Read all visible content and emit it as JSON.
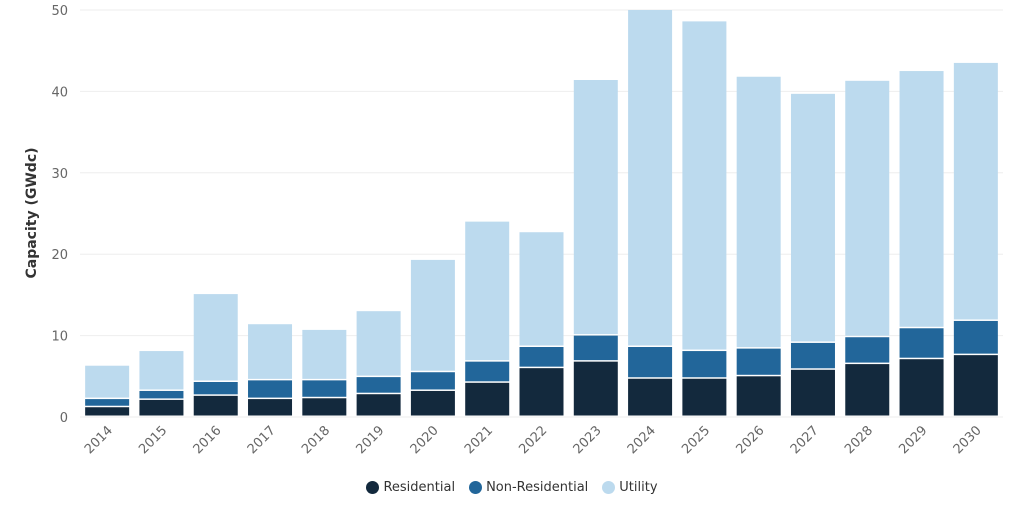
{
  "chart_data": {
    "type": "bar",
    "stacked": true,
    "title": "",
    "xlabel": "",
    "ylabel": "Capacity (GWdc)",
    "ylim": [
      0,
      50
    ],
    "yticks": [
      0,
      10,
      20,
      30,
      40,
      50
    ],
    "grid": true,
    "legend_position": "bottom",
    "categories": [
      "2014",
      "2015",
      "2016",
      "2017",
      "2018",
      "2019",
      "2020",
      "2021",
      "2022",
      "2023",
      "2024",
      "2025",
      "2026",
      "2027",
      "2028",
      "2029",
      "2030"
    ],
    "series": [
      {
        "name": "Residential",
        "color": "#13293d",
        "values": [
          1.2,
          2.1,
          2.6,
          2.2,
          2.3,
          2.8,
          3.2,
          4.2,
          6.0,
          6.8,
          4.7,
          4.7,
          5.0,
          5.8,
          6.5,
          7.1,
          7.6
        ]
      },
      {
        "name": "Non-Residential",
        "color": "#22669a",
        "values": [
          1.0,
          1.1,
          1.7,
          2.3,
          2.2,
          2.1,
          2.3,
          2.6,
          2.6,
          3.2,
          3.9,
          3.4,
          3.4,
          3.3,
          3.3,
          3.8,
          4.2
        ]
      },
      {
        "name": "Utility",
        "color": "#bcdaee",
        "values": [
          4.1,
          4.9,
          10.8,
          6.9,
          6.2,
          8.1,
          13.8,
          17.2,
          14.1,
          31.4,
          41.4,
          40.5,
          33.4,
          30.6,
          31.5,
          31.6,
          31.7
        ]
      }
    ]
  }
}
